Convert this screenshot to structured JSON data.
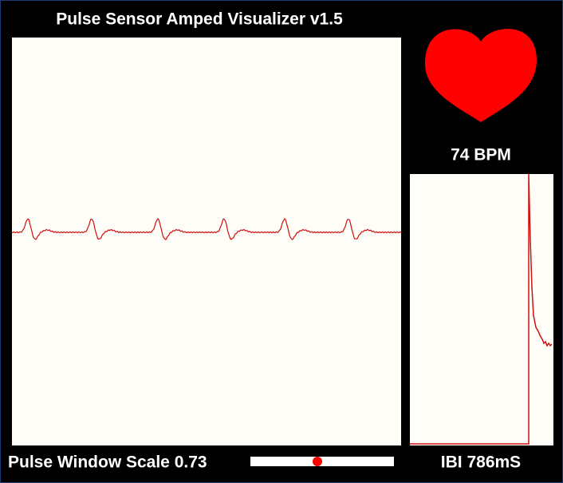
{
  "header": {
    "title": "Pulse Sensor Amped Visualizer v1.5"
  },
  "heart": {
    "bpm_label": "74 BPM"
  },
  "ibi": {
    "label": "IBI 786mS"
  },
  "controls": {
    "scale_label": "Pulse Window Scale 0.73"
  }
}
